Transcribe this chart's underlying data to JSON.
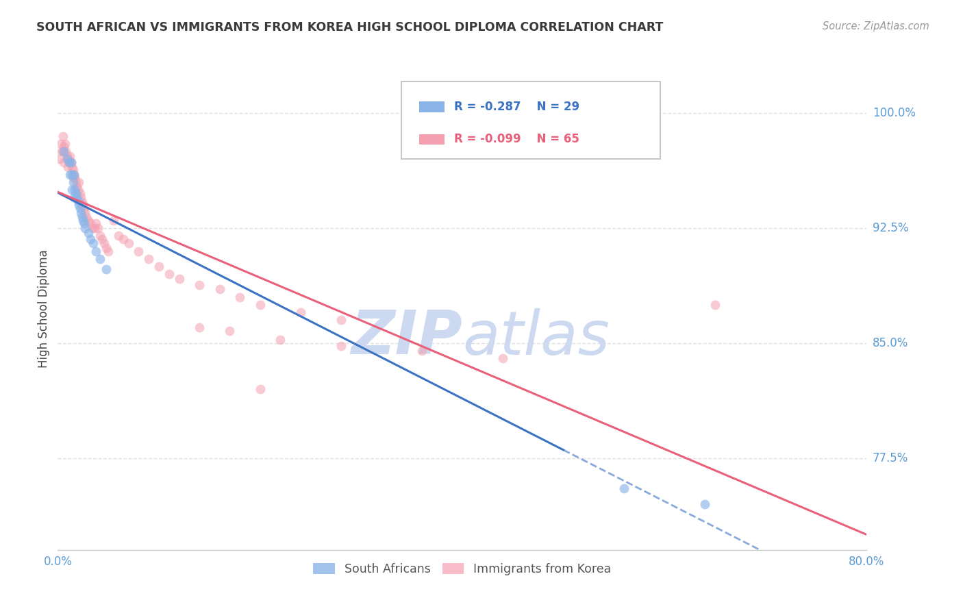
{
  "title": "SOUTH AFRICAN VS IMMIGRANTS FROM KOREA HIGH SCHOOL DIPLOMA CORRELATION CHART",
  "source": "Source: ZipAtlas.com",
  "ylabel": "High School Diploma",
  "ytick_labels": [
    "100.0%",
    "92.5%",
    "85.0%",
    "77.5%"
  ],
  "ytick_values": [
    1.0,
    0.925,
    0.85,
    0.775
  ],
  "xmin": 0.0,
  "xmax": 0.8,
  "ymin": 0.715,
  "ymax": 1.03,
  "legend_blue_r": "-0.287",
  "legend_blue_n": "29",
  "legend_pink_r": "-0.099",
  "legend_pink_n": "65",
  "legend_blue_label": "South Africans",
  "legend_pink_label": "Immigrants from Korea",
  "title_color": "#3a3a3a",
  "source_color": "#999999",
  "ytick_color": "#5b9bd5",
  "grid_color": "#e0e0e0",
  "watermark_color": "#ccd9f0",
  "blue_scatter_color": "#8ab4e8",
  "pink_scatter_color": "#f4a0b0",
  "blue_line_color": "#3a72c4",
  "pink_line_color": "#e8607a",
  "scatter_size": 100,
  "blue_scatter_alpha": 0.65,
  "pink_scatter_alpha": 0.55,
  "south_african_x": [
    0.006,
    0.009,
    0.011,
    0.012,
    0.013,
    0.014,
    0.014,
    0.015,
    0.016,
    0.016,
    0.017,
    0.018,
    0.019,
    0.02,
    0.021,
    0.022,
    0.023,
    0.024,
    0.025,
    0.026,
    0.027,
    0.03,
    0.032,
    0.035,
    0.038,
    0.042,
    0.048,
    0.56,
    0.64
  ],
  "south_african_y": [
    0.975,
    0.97,
    0.968,
    0.96,
    0.968,
    0.96,
    0.95,
    0.955,
    0.96,
    0.945,
    0.95,
    0.948,
    0.945,
    0.943,
    0.94,
    0.938,
    0.935,
    0.932,
    0.93,
    0.928,
    0.925,
    0.922,
    0.918,
    0.915,
    0.91,
    0.905,
    0.898,
    0.755,
    0.745
  ],
  "korea_x": [
    0.002,
    0.003,
    0.004,
    0.005,
    0.005,
    0.006,
    0.006,
    0.007,
    0.008,
    0.009,
    0.01,
    0.01,
    0.011,
    0.012,
    0.013,
    0.014,
    0.015,
    0.015,
    0.016,
    0.017,
    0.018,
    0.019,
    0.02,
    0.021,
    0.022,
    0.023,
    0.024,
    0.025,
    0.026,
    0.027,
    0.028,
    0.03,
    0.032,
    0.034,
    0.036,
    0.038,
    0.04,
    0.042,
    0.044,
    0.046,
    0.048,
    0.05,
    0.055,
    0.06,
    0.065,
    0.07,
    0.08,
    0.09,
    0.1,
    0.11,
    0.12,
    0.14,
    0.16,
    0.18,
    0.2,
    0.24,
    0.28,
    0.14,
    0.17,
    0.22,
    0.28,
    0.36,
    0.44,
    0.2,
    0.65
  ],
  "korea_y": [
    0.97,
    0.98,
    0.975,
    0.985,
    0.975,
    0.978,
    0.968,
    0.98,
    0.975,
    0.972,
    0.97,
    0.965,
    0.968,
    0.972,
    0.968,
    0.965,
    0.963,
    0.958,
    0.96,
    0.958,
    0.955,
    0.952,
    0.95,
    0.955,
    0.948,
    0.945,
    0.942,
    0.94,
    0.938,
    0.935,
    0.932,
    0.93,
    0.928,
    0.925,
    0.925,
    0.928,
    0.925,
    0.92,
    0.918,
    0.915,
    0.912,
    0.91,
    0.93,
    0.92,
    0.918,
    0.915,
    0.91,
    0.905,
    0.9,
    0.895,
    0.892,
    0.888,
    0.885,
    0.88,
    0.875,
    0.87,
    0.865,
    0.86,
    0.858,
    0.852,
    0.848,
    0.845,
    0.84,
    0.82,
    0.875
  ]
}
